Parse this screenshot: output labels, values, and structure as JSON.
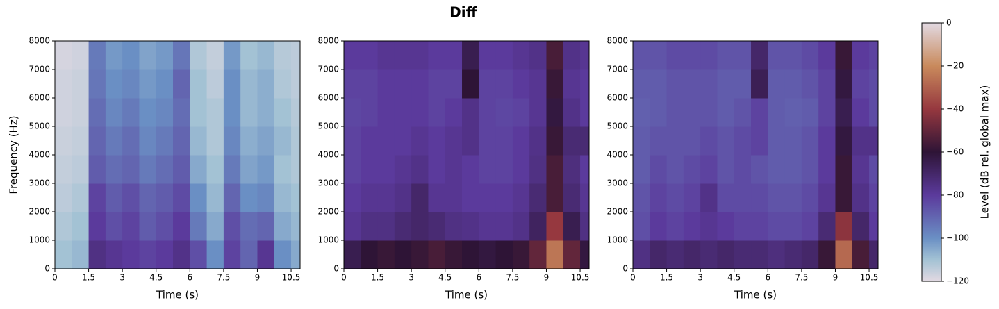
{
  "title": "Diff",
  "chart_data": [
    {
      "type": "heatmap",
      "xlabel": "Time (s)",
      "ylabel": "Frequency (Hz)",
      "xlim": [
        0,
        10.9
      ],
      "ylim": [
        0,
        8000
      ],
      "xticks": [
        0,
        1.5,
        3,
        4.5,
        6,
        7.5,
        9,
        10.5
      ],
      "yticks": [
        0,
        1000,
        2000,
        3000,
        4000,
        5000,
        6000,
        7000,
        8000
      ],
      "xbins": [
        0,
        0.75,
        1.5,
        2.25,
        3,
        3.75,
        4.5,
        5.25,
        6,
        6.75,
        7.5,
        8.25,
        9,
        9.75,
        10.5,
        10.9
      ],
      "ybins": [
        0,
        1000,
        2000,
        3000,
        4000,
        5000,
        6000,
        7000,
        8000
      ],
      "values": [
        [
          -110,
          -108,
          -75,
          -78,
          -80,
          -82,
          -80,
          -76,
          -85,
          -100,
          -82,
          -90,
          -78,
          -100,
          -105
        ],
        [
          -112,
          -110,
          -80,
          -85,
          -82,
          -88,
          -85,
          -80,
          -95,
          -105,
          -85,
          -92,
          -90,
          -105,
          -108
        ],
        [
          -114,
          -112,
          -82,
          -88,
          -85,
          -90,
          -88,
          -84,
          -100,
          -108,
          -90,
          -100,
          -98,
          -108,
          -110
        ],
        [
          -115,
          -114,
          -88,
          -92,
          -90,
          -95,
          -92,
          -88,
          -105,
          -110,
          -95,
          -104,
          -102,
          -110,
          -112
        ],
        [
          -116,
          -115,
          -90,
          -95,
          -92,
          -98,
          -95,
          -90,
          -108,
          -112,
          -98,
          -106,
          -104,
          -108,
          -112
        ],
        [
          -117,
          -116,
          -92,
          -98,
          -95,
          -100,
          -98,
          -92,
          -110,
          -112,
          -100,
          -108,
          -106,
          -110,
          -113
        ],
        [
          -117,
          -116,
          -94,
          -100,
          -98,
          -102,
          -100,
          -90,
          -110,
          -114,
          -100,
          -108,
          -106,
          -112,
          -114
        ],
        [
          -118,
          -117,
          -95,
          -102,
          -100,
          -104,
          -102,
          -94,
          -112,
          -115,
          -102,
          -110,
          -108,
          -113,
          -114
        ]
      ]
    },
    {
      "type": "heatmap",
      "xlabel": "Time (s)",
      "xlim": [
        0,
        10.9
      ],
      "ylim": [
        0,
        8000
      ],
      "xticks": [
        0,
        1.5,
        3,
        4.5,
        6,
        7.5,
        9,
        10.5
      ],
      "yticks": [
        0,
        1000,
        2000,
        3000,
        4000,
        5000,
        6000,
        7000,
        8000
      ],
      "xbins": [
        0,
        0.75,
        1.5,
        2.25,
        3,
        3.75,
        4.5,
        5.25,
        6,
        6.75,
        7.5,
        8.25,
        9,
        9.75,
        10.5,
        10.9
      ],
      "ybins": [
        0,
        1000,
        2000,
        3000,
        4000,
        5000,
        6000,
        7000,
        8000
      ],
      "values": [
        [
          -65,
          -60,
          -58,
          -60,
          -58,
          -55,
          -58,
          -60,
          -62,
          -60,
          -58,
          -50,
          -25,
          -50,
          -62
        ],
        [
          -78,
          -75,
          -75,
          -72,
          -70,
          -72,
          -75,
          -76,
          -78,
          -78,
          -76,
          -68,
          -40,
          -65,
          -75
        ],
        [
          -80,
          -78,
          -78,
          -76,
          -70,
          -78,
          -78,
          -80,
          -80,
          -80,
          -78,
          -72,
          -55,
          -72,
          -78
        ],
        [
          -82,
          -80,
          -80,
          -78,
          -76,
          -80,
          -78,
          -80,
          -82,
          -82,
          -80,
          -75,
          -55,
          -74,
          -80
        ],
        [
          -82,
          -80,
          -80,
          -80,
          -78,
          -80,
          -78,
          -76,
          -82,
          -82,
          -80,
          -76,
          -58,
          -72,
          -72
        ],
        [
          -83,
          -82,
          -80,
          -80,
          -80,
          -82,
          -80,
          -76,
          -82,
          -83,
          -82,
          -78,
          -62,
          -76,
          -80
        ],
        [
          -82,
          -82,
          -80,
          -80,
          -80,
          -82,
          -82,
          -60,
          -82,
          -82,
          -80,
          -78,
          -58,
          -78,
          -80
        ],
        [
          -80,
          -80,
          -78,
          -78,
          -78,
          -80,
          -80,
          -65,
          -80,
          -80,
          -78,
          -76,
          -55,
          -76,
          -78
        ]
      ]
    },
    {
      "type": "heatmap",
      "xlabel": "Time (s)",
      "xlim": [
        0,
        10.9
      ],
      "ylim": [
        0,
        8000
      ],
      "xticks": [
        0,
        1.5,
        3,
        4.5,
        6,
        7.5,
        9,
        10.5
      ],
      "yticks": [
        0,
        1000,
        2000,
        3000,
        4000,
        5000,
        6000,
        7000,
        8000
      ],
      "xbins": [
        0,
        0.75,
        1.5,
        2.25,
        3,
        3.75,
        4.5,
        5.25,
        6,
        6.75,
        7.5,
        8.25,
        9,
        9.75,
        10.5,
        10.9
      ],
      "ybins": [
        0,
        1000,
        2000,
        3000,
        4000,
        5000,
        6000,
        7000,
        8000
      ],
      "values": [
        [
          -75,
          -70,
          -72,
          -70,
          -72,
          -70,
          -72,
          -72,
          -74,
          -72,
          -70,
          -58,
          -28,
          -55,
          -70
        ],
        [
          -85,
          -80,
          -82,
          -80,
          -78,
          -80,
          -82,
          -82,
          -84,
          -84,
          -82,
          -72,
          -42,
          -70,
          -80
        ],
        [
          -86,
          -82,
          -84,
          -82,
          -76,
          -84,
          -84,
          -84,
          -86,
          -86,
          -84,
          -78,
          -58,
          -76,
          -82
        ],
        [
          -88,
          -84,
          -86,
          -84,
          -82,
          -86,
          -84,
          -86,
          -88,
          -88,
          -86,
          -80,
          -58,
          -78,
          -84
        ],
        [
          -88,
          -86,
          -86,
          -86,
          -84,
          -86,
          -84,
          -82,
          -88,
          -88,
          -86,
          -80,
          -62,
          -76,
          -76
        ],
        [
          -89,
          -88,
          -86,
          -86,
          -86,
          -88,
          -86,
          -82,
          -88,
          -89,
          -88,
          -82,
          -65,
          -80,
          -84
        ],
        [
          -88,
          -88,
          -86,
          -86,
          -86,
          -88,
          -88,
          -66,
          -88,
          -88,
          -86,
          -82,
          -62,
          -82,
          -84
        ],
        [
          -86,
          -86,
          -84,
          -84,
          -84,
          -86,
          -86,
          -70,
          -86,
          -86,
          -84,
          -80,
          -58,
          -80,
          -82
        ]
      ]
    }
  ],
  "colorbar": {
    "label": "Level (dB rel. global max)",
    "clim": [
      -120,
      0
    ],
    "ticks": [
      {
        "value": 0,
        "label": "0"
      },
      {
        "value": -20,
        "label": "−20"
      },
      {
        "value": -40,
        "label": "−40"
      },
      {
        "value": -60,
        "label": "−60"
      },
      {
        "value": -80,
        "label": "−80"
      },
      {
        "value": -100,
        "label": "−100"
      },
      {
        "value": -120,
        "label": "−120"
      }
    ],
    "colormap": {
      "stops": [
        -120,
        -110,
        -100,
        -80,
        -60,
        -40,
        -20,
        0
      ],
      "colors": [
        "#e2d9e2",
        "#a3c2d4",
        "#6a8fc4",
        "#5b3a9c",
        "#2e1436",
        "#96383f",
        "#c98a5c",
        "#e2d9e2"
      ]
    }
  }
}
